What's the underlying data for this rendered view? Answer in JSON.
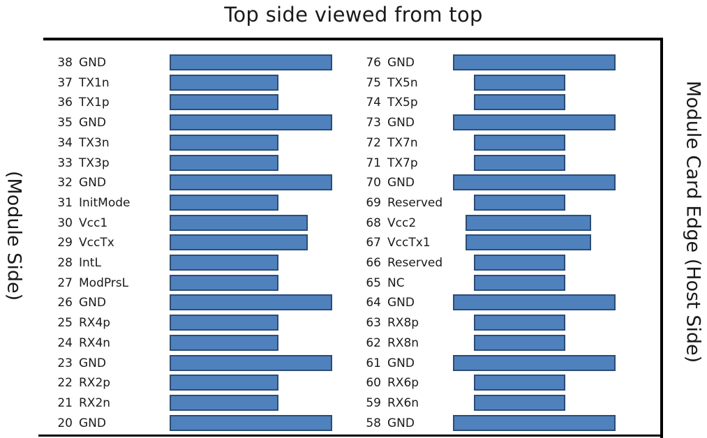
{
  "title": "Top side viewed from top",
  "left_side_label": "(Module Side)",
  "right_side_label": "Module Card Edge (Host Side)",
  "colors": {
    "pad_fill": "#4f81bd",
    "pad_border": "#2c4d75",
    "frame": "#000000"
  },
  "left_pins": [
    {
      "num": "38",
      "signal": "GND",
      "pad": "long"
    },
    {
      "num": "37",
      "signal": "TX1n",
      "pad": "short"
    },
    {
      "num": "36",
      "signal": "TX1p",
      "pad": "short"
    },
    {
      "num": "35",
      "signal": "GND",
      "pad": "long"
    },
    {
      "num": "34",
      "signal": "TX3n",
      "pad": "short"
    },
    {
      "num": "33",
      "signal": "TX3p",
      "pad": "short"
    },
    {
      "num": "32",
      "signal": "GND",
      "pad": "long"
    },
    {
      "num": "31",
      "signal": "InitMode",
      "pad": "short"
    },
    {
      "num": "30",
      "signal": "Vcc1",
      "pad": "medium"
    },
    {
      "num": "29",
      "signal": "VccTx",
      "pad": "medium"
    },
    {
      "num": "28",
      "signal": "IntL",
      "pad": "short"
    },
    {
      "num": "27",
      "signal": "ModPrsL",
      "pad": "short"
    },
    {
      "num": "26",
      "signal": "GND",
      "pad": "long"
    },
    {
      "num": "25",
      "signal": "RX4p",
      "pad": "short"
    },
    {
      "num": "24",
      "signal": "RX4n",
      "pad": "short"
    },
    {
      "num": "23",
      "signal": "GND",
      "pad": "long"
    },
    {
      "num": "22",
      "signal": "RX2p",
      "pad": "short"
    },
    {
      "num": "21",
      "signal": "RX2n",
      "pad": "short"
    },
    {
      "num": "20",
      "signal": "GND",
      "pad": "long"
    }
  ],
  "right_pins": [
    {
      "num": "76",
      "signal": "GND",
      "pad": "long"
    },
    {
      "num": "75",
      "signal": "TX5n",
      "pad": "short"
    },
    {
      "num": "74",
      "signal": "TX5p",
      "pad": "short"
    },
    {
      "num": "73",
      "signal": "GND",
      "pad": "long"
    },
    {
      "num": "72",
      "signal": "TX7n",
      "pad": "short"
    },
    {
      "num": "71",
      "signal": "TX7p",
      "pad": "short"
    },
    {
      "num": "70",
      "signal": "GND",
      "pad": "long"
    },
    {
      "num": "69",
      "signal": "Reserved",
      "pad": "short"
    },
    {
      "num": "68",
      "signal": "Vcc2",
      "pad": "medium"
    },
    {
      "num": "67",
      "signal": "VccTx1",
      "pad": "medium"
    },
    {
      "num": "66",
      "signal": "Reserved",
      "pad": "short"
    },
    {
      "num": "65",
      "signal": "NC",
      "pad": "short"
    },
    {
      "num": "64",
      "signal": "GND",
      "pad": "long"
    },
    {
      "num": "63",
      "signal": "RX8p",
      "pad": "short"
    },
    {
      "num": "62",
      "signal": "RX8n",
      "pad": "short"
    },
    {
      "num": "61",
      "signal": "GND",
      "pad": "long"
    },
    {
      "num": "60",
      "signal": "RX6p",
      "pad": "short"
    },
    {
      "num": "59",
      "signal": "RX6n",
      "pad": "short"
    },
    {
      "num": "58",
      "signal": "GND",
      "pad": "long"
    }
  ]
}
